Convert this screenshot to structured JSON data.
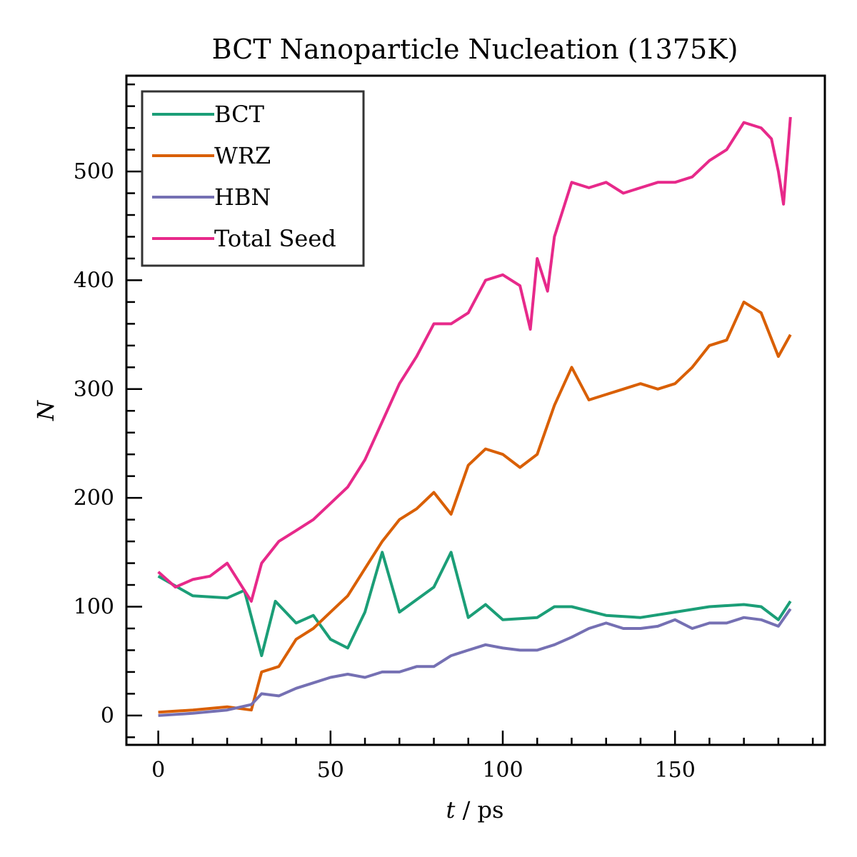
{
  "chart_data": {
    "type": "line",
    "title": "BCT Nanoparticle Nucleation (1375K)",
    "xlabel_var": "t",
    "xlabel_unit": " / ps",
    "ylabel": "N",
    "xlim": [
      -9.25,
      193.5
    ],
    "ylim": [
      -27,
      588
    ],
    "x_ticks": [
      0,
      50,
      100,
      150
    ],
    "y_ticks": [
      0,
      100,
      200,
      300,
      400,
      500
    ],
    "x_minor_step": 10,
    "y_minor_step": 20,
    "legend_position": "upper-left",
    "grid": false,
    "series": [
      {
        "name": "BCT",
        "color": "#1b9e77",
        "x": [
          0,
          10,
          20,
          25,
          30,
          34,
          40,
          45,
          50,
          55,
          60,
          65,
          70,
          80,
          85,
          90,
          95,
          100,
          110,
          115,
          120,
          130,
          140,
          150,
          160,
          170,
          175,
          180,
          183.5
        ],
        "y": [
          128,
          110,
          108,
          115,
          55,
          105,
          85,
          92,
          70,
          62,
          95,
          150,
          95,
          118,
          150,
          90,
          102,
          88,
          90,
          100,
          100,
          92,
          90,
          95,
          100,
          102,
          100,
          88,
          105
        ]
      },
      {
        "name": "WRZ",
        "color": "#d95f02",
        "x": [
          0,
          10,
          20,
          27,
          30,
          35,
          40,
          45,
          50,
          55,
          60,
          65,
          70,
          75,
          80,
          85,
          90,
          95,
          100,
          105,
          110,
          115,
          120,
          125,
          130,
          135,
          140,
          145,
          150,
          155,
          160,
          165,
          170,
          175,
          180,
          183.5
        ],
        "y": [
          3,
          5,
          8,
          5,
          40,
          45,
          70,
          80,
          95,
          110,
          135,
          160,
          180,
          190,
          205,
          185,
          230,
          245,
          240,
          228,
          240,
          285,
          320,
          290,
          295,
          300,
          305,
          300,
          305,
          320,
          340,
          345,
          380,
          370,
          330,
          350
        ]
      },
      {
        "name": "HBN",
        "color": "#7570b3",
        "x": [
          0,
          10,
          20,
          27,
          30,
          35,
          40,
          45,
          50,
          55,
          60,
          65,
          70,
          75,
          80,
          85,
          90,
          95,
          100,
          105,
          110,
          115,
          120,
          125,
          130,
          135,
          140,
          145,
          150,
          155,
          160,
          165,
          170,
          175,
          180,
          183.5
        ],
        "y": [
          0,
          2,
          5,
          10,
          20,
          18,
          25,
          30,
          35,
          38,
          35,
          40,
          40,
          45,
          45,
          55,
          60,
          65,
          62,
          60,
          60,
          65,
          72,
          80,
          85,
          80,
          80,
          82,
          88,
          80,
          85,
          85,
          90,
          88,
          82,
          98
        ]
      },
      {
        "name": "Total Seed",
        "color": "#e7298a",
        "x": [
          0,
          5,
          10,
          15,
          20,
          25,
          27,
          30,
          35,
          40,
          45,
          50,
          55,
          60,
          65,
          70,
          75,
          80,
          85,
          90,
          95,
          100,
          105,
          108,
          110,
          113,
          115,
          120,
          125,
          130,
          135,
          140,
          145,
          150,
          155,
          160,
          165,
          170,
          175,
          178,
          180,
          181.5,
          183.5
        ],
        "y": [
          132,
          118,
          125,
          128,
          140,
          115,
          105,
          140,
          160,
          170,
          180,
          195,
          210,
          235,
          270,
          305,
          330,
          360,
          360,
          370,
          400,
          405,
          395,
          355,
          420,
          390,
          440,
          490,
          485,
          490,
          480,
          485,
          490,
          490,
          495,
          510,
          520,
          545,
          540,
          530,
          500,
          470,
          550
        ]
      }
    ]
  }
}
